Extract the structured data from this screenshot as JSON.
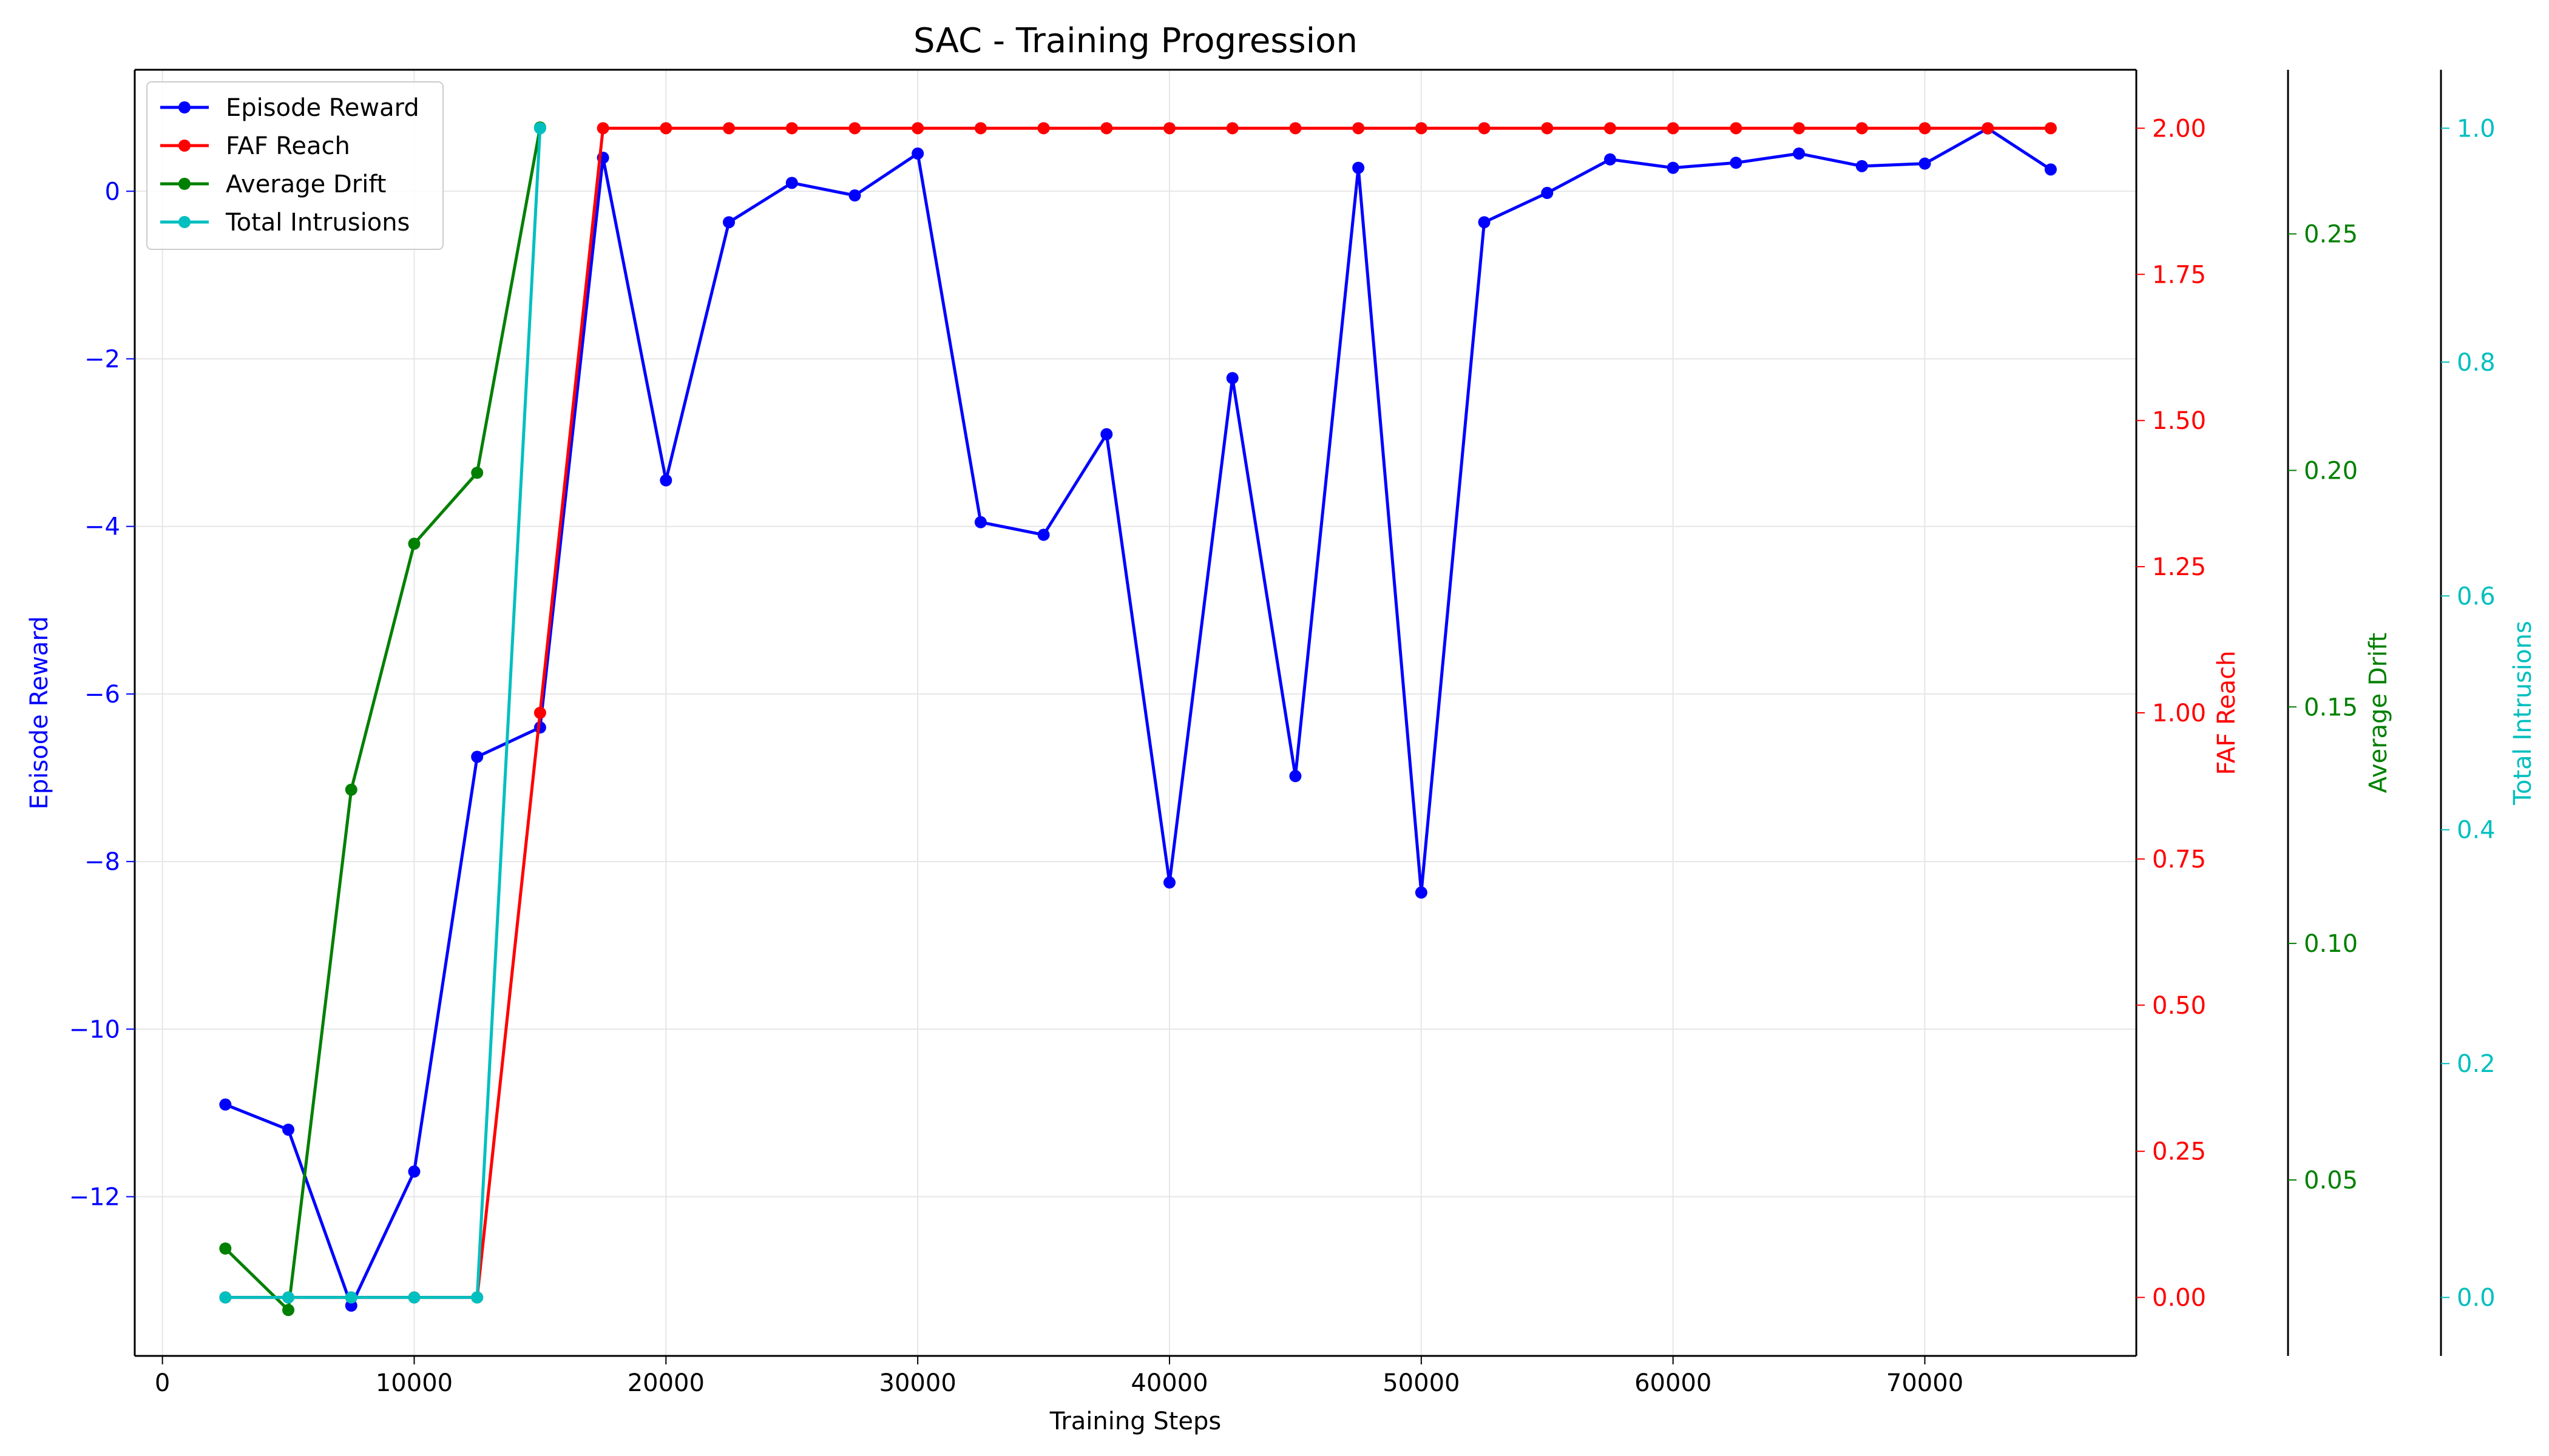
{
  "chart_data": {
    "type": "line",
    "title": "SAC - Training Progression",
    "xlabel": "Training Steps",
    "xlim": [
      -1100,
      78400
    ],
    "xticks": [
      0,
      10000,
      20000,
      30000,
      40000,
      50000,
      60000,
      70000
    ],
    "x": [
      2500,
      5000,
      7500,
      10000,
      12500,
      15000,
      17500,
      20000,
      22500,
      25000,
      27500,
      30000,
      32500,
      35000,
      37500,
      40000,
      42500,
      45000,
      47500,
      50000,
      52500,
      55000,
      57500,
      60000,
      62500,
      65000,
      67500,
      70000,
      72500,
      75000
    ],
    "grid": true,
    "legend": "upper left",
    "axes": [
      {
        "id": "reward",
        "label": "Episode Reward",
        "side": "left",
        "color": "#0000ff",
        "ylim": [
          -13.9,
          1.45
        ],
        "ticks": [
          0,
          -2,
          -4,
          -6,
          -8,
          -10,
          -12
        ],
        "tick_labels": [
          "0",
          "−2",
          "−4",
          "−6",
          "−8",
          "−10",
          "−12"
        ]
      },
      {
        "id": "faf",
        "label": "FAF Reach",
        "side": "right",
        "color": "#ff0000",
        "ylim": [
          -0.1,
          2.1
        ],
        "ticks": [
          0,
          0.25,
          0.5,
          0.75,
          1.0,
          1.25,
          1.5,
          1.75,
          2.0
        ],
        "tick_labels": [
          "0.00",
          "0.25",
          "0.50",
          "0.75",
          "1.00",
          "1.25",
          "1.50",
          "1.75",
          "2.00"
        ]
      },
      {
        "id": "drift",
        "label": "Average Drift",
        "side": "right",
        "color": "#008000",
        "ylim": [
          0.0128,
          0.2847
        ],
        "ticks": [
          0.05,
          0.1,
          0.15,
          0.2,
          0.25
        ],
        "tick_labels": [
          "0.05",
          "0.10",
          "0.15",
          "0.20",
          "0.25"
        ]
      },
      {
        "id": "intrusions",
        "label": "Total Intrusions",
        "side": "right",
        "color": "#00bfbf",
        "ylim": [
          -0.05,
          1.05
        ],
        "ticks": [
          0,
          0.2,
          0.4,
          0.6,
          0.8,
          1.0
        ],
        "tick_labels": [
          "0.0",
          "0.2",
          "0.4",
          "0.6",
          "0.8",
          "1.0"
        ]
      }
    ],
    "series": [
      {
        "name": "Episode Reward",
        "axis": "reward",
        "color": "#0000ff",
        "values": [
          -10.9,
          -11.2,
          -13.3,
          -11.7,
          -6.75,
          -6.4,
          0.4,
          -3.45,
          -0.37,
          0.1,
          -0.05,
          0.45,
          -3.95,
          -4.1,
          -2.9,
          -8.25,
          -2.23,
          -6.98,
          0.28,
          -8.37,
          -0.37,
          -0.02,
          0.38,
          0.28,
          0.34,
          0.45,
          0.3,
          0.33,
          0.75,
          0.26
        ]
      },
      {
        "name": "FAF Reach",
        "axis": "faf",
        "color": "#ff0000",
        "values": [
          0,
          0,
          0,
          0,
          0,
          1,
          2,
          2,
          2,
          2,
          2,
          2,
          2,
          2,
          2,
          2,
          2,
          2,
          2,
          2,
          2,
          2,
          2,
          2,
          2,
          2,
          2,
          2,
          2,
          2
        ]
      },
      {
        "name": "Average Drift",
        "axis": "drift",
        "color": "#008000",
        "values": [
          0.0355,
          0.0225,
          0.1325,
          0.1845,
          0.1995,
          0.2725,
          null,
          null,
          null,
          null,
          null,
          null,
          null,
          null,
          null,
          null,
          null,
          null,
          null,
          null,
          null,
          null,
          null,
          null,
          null,
          null,
          null,
          null,
          null,
          null
        ]
      },
      {
        "name": "Total Intrusions",
        "axis": "intrusions",
        "color": "#00bfbf",
        "values": [
          0,
          0,
          0,
          0,
          0,
          1,
          null,
          null,
          null,
          null,
          null,
          null,
          null,
          null,
          null,
          null,
          null,
          null,
          null,
          null,
          null,
          null,
          null,
          null,
          null,
          null,
          null,
          null,
          null,
          null
        ]
      }
    ]
  }
}
